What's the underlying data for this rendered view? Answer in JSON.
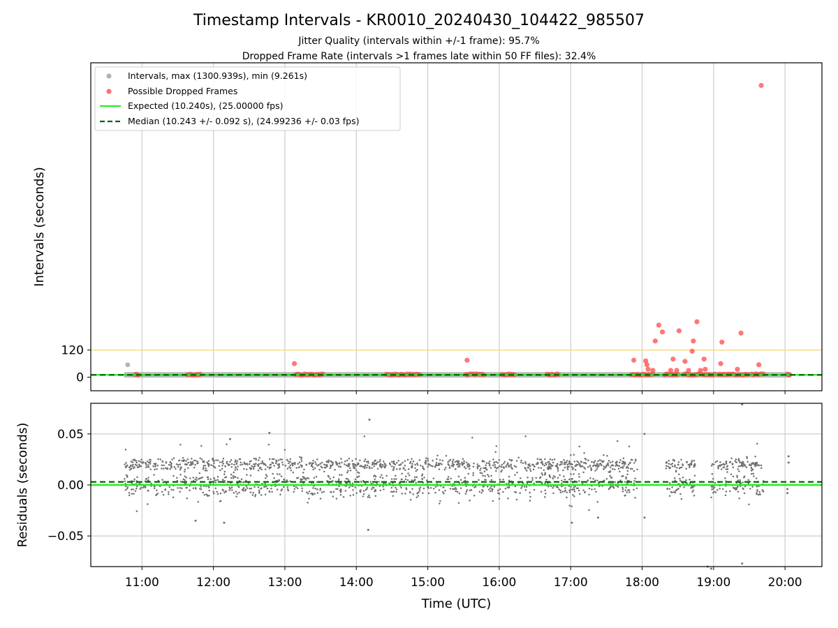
{
  "figure": {
    "title": "Timestamp Intervals - KR0010_20240430_104422_985507",
    "subtitle_1": "Jitter Quality (intervals within +/-1 frame): 95.7%",
    "subtitle_2": "Dropped Frame Rate (intervals >1 frames late within 50 FF files): 32.4%"
  },
  "colors": {
    "intervals": "#a0a0a0",
    "dropped": "#ff4a4a",
    "expected": "#22ee22",
    "median": "#006400",
    "threshold": "#f5d77a",
    "residual": "#707070",
    "grid": "#cccccc"
  },
  "chart_data": [
    {
      "type": "scatter",
      "panel": "top",
      "ylabel": "Intervals (seconds)",
      "xlabel": "",
      "xlim": [
        "10:17",
        "20:31"
      ],
      "ylim": [
        -60,
        1390
      ],
      "yticks": [
        0,
        120
      ],
      "ytick_labels": [
        "0",
        "120"
      ],
      "xticks": [
        "11:00",
        "12:00",
        "13:00",
        "14:00",
        "15:00",
        "16:00",
        "17:00",
        "18:00",
        "19:00",
        "20:00"
      ],
      "grid": "vertical",
      "legend_placement": "top-left",
      "legend": [
        "Intervals, max (1300.939s), min (9.261s)",
        "Possible Dropped Frames",
        "Expected (10.240s), (25.00000 fps)",
        "Median (10.243 +/- 0.092 s), (24.99236 +/- 0.03 fps)"
      ],
      "reference_lines": [
        {
          "name": "Expected",
          "y": 10.24,
          "style": "solid"
        },
        {
          "name": "Median",
          "y": 10.243,
          "style": "dashed"
        },
        {
          "name": "threshold",
          "y": 120,
          "style": "solid"
        }
      ],
      "intervals_max": 1300.939,
      "intervals_min": 9.261,
      "interval_segments": [
        {
          "start": "10:45",
          "end": "20:05",
          "y": 10.24
        }
      ],
      "interval_points": [
        {
          "x": "10:48",
          "y": 55
        }
      ],
      "dropped_segments": [
        {
          "start": "10:54",
          "end": "10:57",
          "y": 12
        },
        {
          "start": "11:38",
          "end": "11:49",
          "y": 12
        },
        {
          "start": "13:09",
          "end": "13:32",
          "y": 12
        },
        {
          "start": "14:25",
          "end": "14:53",
          "y": 12
        },
        {
          "start": "15:32",
          "end": "15:47",
          "y": 12
        },
        {
          "start": "16:02",
          "end": "16:13",
          "y": 12
        },
        {
          "start": "16:40",
          "end": "16:50",
          "y": 12
        },
        {
          "start": "17:51",
          "end": "18:09",
          "y": 12
        },
        {
          "start": "18:19",
          "end": "18:30",
          "y": 12
        },
        {
          "start": "18:35",
          "end": "18:49",
          "y": 12
        },
        {
          "start": "18:51",
          "end": "19:01",
          "y": 12
        },
        {
          "start": "19:04",
          "end": "19:19",
          "y": 12
        },
        {
          "start": "19:21",
          "end": "19:29",
          "y": 12
        },
        {
          "start": "19:32",
          "end": "19:42",
          "y": 12
        },
        {
          "start": "20:02",
          "end": "20:04",
          "y": 12
        }
      ],
      "dropped_points": [
        {
          "x": "13:08",
          "y": 60
        },
        {
          "x": "15:33",
          "y": 75
        },
        {
          "x": "17:53",
          "y": 75
        },
        {
          "x": "18:03",
          "y": 72
        },
        {
          "x": "18:04",
          "y": 55
        },
        {
          "x": "18:05",
          "y": 35
        },
        {
          "x": "18:09",
          "y": 30
        },
        {
          "x": "18:11",
          "y": 160
        },
        {
          "x": "18:14",
          "y": 230
        },
        {
          "x": "18:17",
          "y": 200
        },
        {
          "x": "18:24",
          "y": 30
        },
        {
          "x": "18:26",
          "y": 80
        },
        {
          "x": "18:29",
          "y": 30
        },
        {
          "x": "18:31",
          "y": 205
        },
        {
          "x": "18:36",
          "y": 70
        },
        {
          "x": "18:39",
          "y": 30
        },
        {
          "x": "18:42",
          "y": 115
        },
        {
          "x": "18:43",
          "y": 160
        },
        {
          "x": "18:46",
          "y": 245
        },
        {
          "x": "18:49",
          "y": 30
        },
        {
          "x": "18:52",
          "y": 80
        },
        {
          "x": "18:53",
          "y": 35
        },
        {
          "x": "19:06",
          "y": 60
        },
        {
          "x": "19:07",
          "y": 155
        },
        {
          "x": "19:20",
          "y": 35
        },
        {
          "x": "19:23",
          "y": 195
        },
        {
          "x": "19:38",
          "y": 55
        },
        {
          "x": "19:40",
          "y": 1290
        }
      ]
    },
    {
      "type": "scatter",
      "panel": "bottom",
      "ylabel": "Residuals (seconds)",
      "xlabel": "Time (UTC)",
      "xlim": [
        "10:17",
        "20:31"
      ],
      "ylim": [
        -0.08,
        0.08
      ],
      "yticks": [
        0.05,
        0.0,
        -0.05
      ],
      "ytick_labels": [
        "0.05",
        "0.00",
        "−0.05"
      ],
      "xticks": [
        "11:00",
        "12:00",
        "13:00",
        "14:00",
        "15:00",
        "16:00",
        "17:00",
        "18:00",
        "19:00",
        "20:00"
      ],
      "grid": "both",
      "reference_lines": [
        {
          "name": "Expected",
          "y": 0.0,
          "style": "solid"
        },
        {
          "name": "Median",
          "y": 0.003,
          "style": "dashed"
        }
      ],
      "residual_bands": [
        {
          "start": "10:45",
          "end": "17:57",
          "center": 0.02,
          "spread": 0.003
        },
        {
          "start": "10:45",
          "end": "17:57",
          "center": 0.0,
          "spread": 0.006
        },
        {
          "start": "18:20",
          "end": "18:45",
          "center": 0.02,
          "spread": 0.003
        },
        {
          "start": "18:20",
          "end": "18:45",
          "center": 0.0,
          "spread": 0.006
        },
        {
          "start": "18:58",
          "end": "19:42",
          "center": 0.02,
          "spread": 0.003
        },
        {
          "start": "18:58",
          "end": "19:42",
          "center": 0.0,
          "spread": 0.006
        }
      ],
      "residual_outliers": [
        {
          "x": "14:11",
          "y": 0.064
        },
        {
          "x": "14:10",
          "y": -0.044
        },
        {
          "x": "12:47",
          "y": 0.051
        },
        {
          "x": "12:14",
          "y": 0.045
        },
        {
          "x": "18:02",
          "y": 0.05
        },
        {
          "x": "18:02",
          "y": -0.032
        },
        {
          "x": "11:45",
          "y": -0.035
        },
        {
          "x": "12:09",
          "y": -0.037
        },
        {
          "x": "17:01",
          "y": -0.037
        },
        {
          "x": "17:23",
          "y": -0.032
        },
        {
          "x": "19:24",
          "y": 0.079
        },
        {
          "x": "19:24",
          "y": -0.077
        },
        {
          "x": "18:55",
          "y": -0.08
        },
        {
          "x": "18:58",
          "y": -0.082
        },
        {
          "x": "20:03",
          "y": 0.028
        },
        {
          "x": "20:03",
          "y": 0.022
        },
        {
          "x": "20:02",
          "y": -0.008
        },
        {
          "x": "20:02",
          "y": -0.004
        }
      ]
    }
  ]
}
